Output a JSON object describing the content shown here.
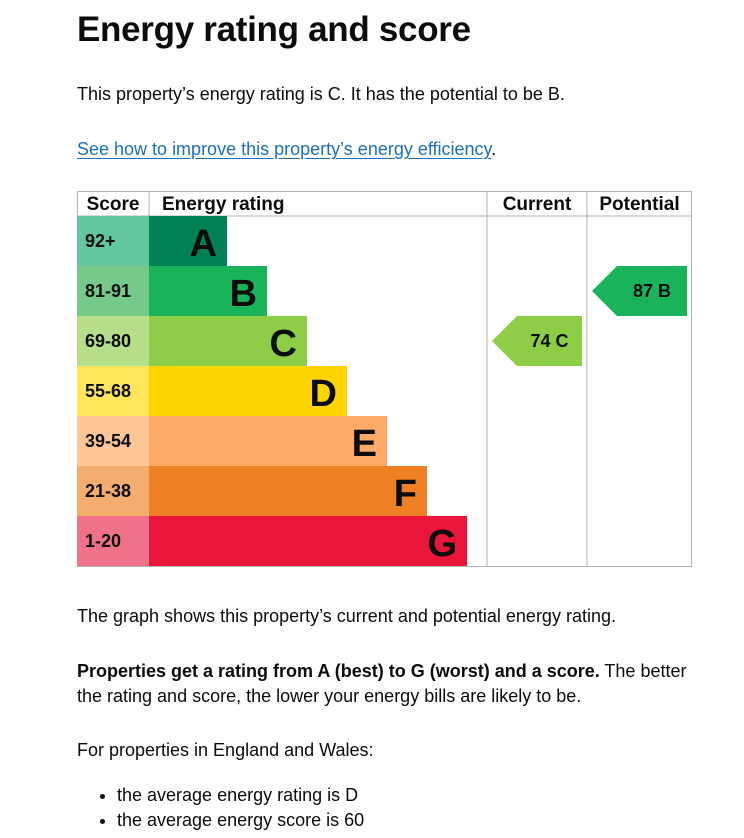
{
  "page": {
    "title": "Energy rating and score",
    "intro": "This property’s energy rating is C. It has the potential to be B.",
    "improve_link": "See how to improve this property’s energy efficiency",
    "improve_link_suffix": ".",
    "graph_caption": "The graph shows this property’s current and potential energy rating.",
    "ratings_bold": "Properties get a rating from A (best) to G (worst) and a score.",
    "ratings_rest_line1": " The better",
    "ratings_line2": "the rating and score, the lower your energy bills are likely to be.",
    "region_intro": "For properties in England and Wales:",
    "bullets": [
      "the average energy rating is D",
      "the average energy score is 60"
    ]
  },
  "chart_data": {
    "type": "bar",
    "headers": {
      "score": "Score",
      "rating": "Energy rating",
      "current": "Current",
      "potential": "Potential"
    },
    "bands": [
      {
        "score": "92+",
        "letter": "A",
        "color": "#008054",
        "score_bg": "#62c79c"
      },
      {
        "score": "81-91",
        "letter": "B",
        "color": "#19b459",
        "score_bg": "#76c98b"
      },
      {
        "score": "69-80",
        "letter": "C",
        "color": "#8dce46",
        "score_bg": "#b5df8a"
      },
      {
        "score": "55-68",
        "letter": "D",
        "color": "#ffd500",
        "score_bg": "#ffe55c"
      },
      {
        "score": "39-54",
        "letter": "E",
        "color": "#fcaa65",
        "score_bg": "#fdc696"
      },
      {
        "score": "21-38",
        "letter": "F",
        "color": "#ef8023",
        "score_bg": "#f5ac6f"
      },
      {
        "score": "1-20",
        "letter": "G",
        "color": "#e9153b",
        "score_bg": "#f0728a"
      }
    ],
    "current": {
      "score": 74,
      "letter": "C",
      "label": "74  C",
      "color": "#8dce46"
    },
    "potential": {
      "score": 87,
      "letter": "B",
      "label": "87  B",
      "color": "#19b459"
    }
  }
}
